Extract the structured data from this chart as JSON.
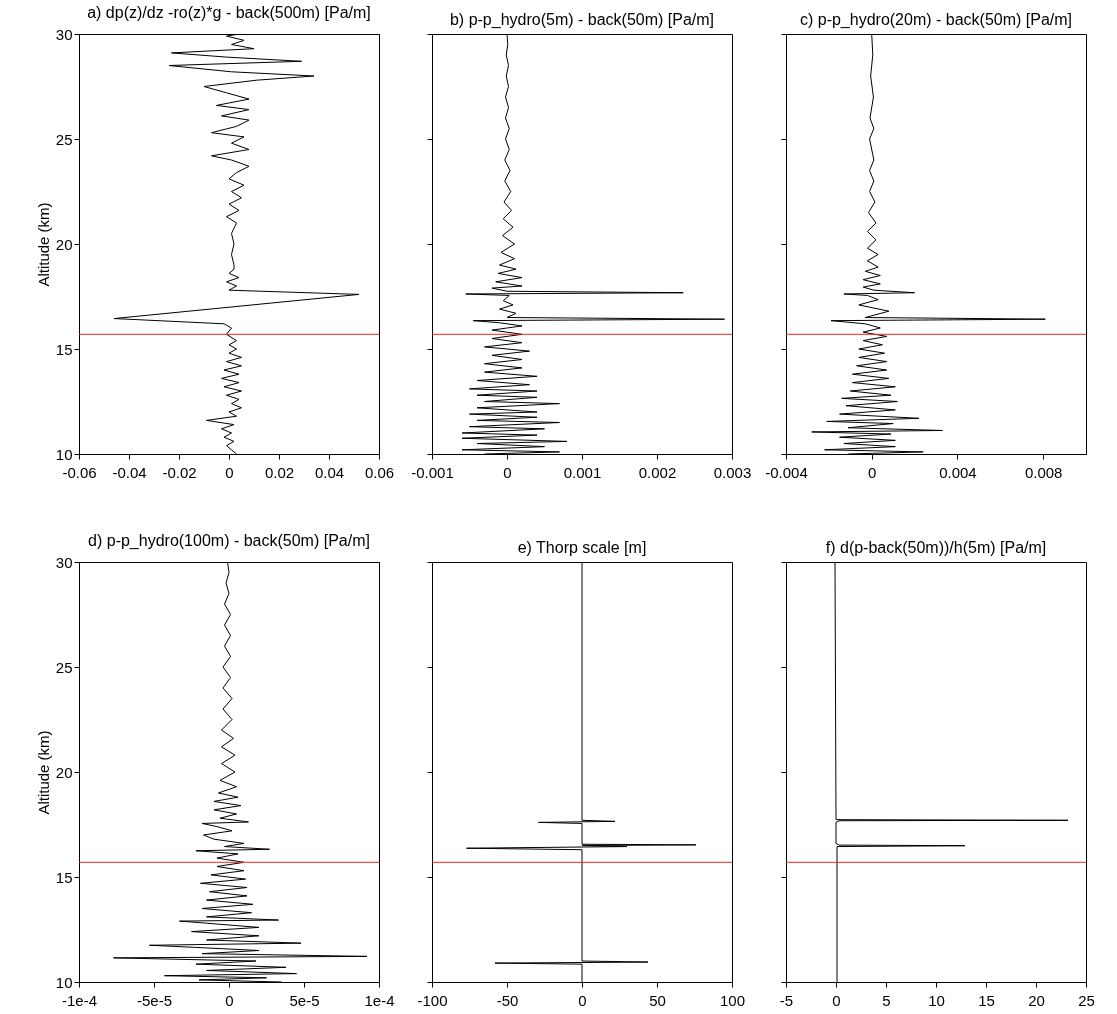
{
  "chart_data": [
    {
      "type": "line",
      "title": "a) dp(z)/dz -ro(z)*g - back(500m) [Pa/m]",
      "ylabel": "Altitude (km)",
      "xlim": [
        -0.06,
        0.06
      ],
      "xticks": [
        -0.06,
        -0.04,
        -0.02,
        0,
        0.02,
        0.04,
        0.06
      ],
      "ylim": [
        10,
        30
      ],
      "yticks": [
        10,
        15,
        20,
        25,
        30
      ],
      "series": [
        {
          "color": "#000000",
          "x": [
            0.003,
            0.001,
            -0.001,
            0.002,
            -0.002,
            0.001,
            -0.003,
            0.002,
            -0.009,
            0.003,
            0.0,
            0.005,
            0.001,
            0.004,
            -0.001,
            0.005,
            -0.002,
            0.004,
            -0.003,
            0.004,
            -0.002,
            0.005,
            -0.001,
            0.005,
            0.0,
            0.003,
            0.0,
            0.003,
            -0.001,
            0.001,
            -0.002,
            -0.046,
            0.052,
            0.0,
            0.003,
            -0.001,
            0.004,
            0.0,
            0.002,
            0.002,
            0.001,
            0.002,
            0.001,
            0.003,
            -0.001,
            0.004,
            0.0,
            0.005,
            0.001,
            0.006,
            0.0,
            0.003,
            0.008,
            0.001,
            -0.007,
            0.008,
            0.001,
            0.006,
            -0.007,
            0.003,
            0.008,
            -0.003,
            0.008,
            -0.005,
            0.008,
            -0.001,
            -0.01,
            0.011,
            0.034,
            0.001,
            -0.024,
            0.029,
            -0.001,
            -0.023,
            0.01,
            0.001,
            0.006,
            -0.001,
            0.004
          ],
          "values": [
            10.0,
            10.2,
            10.4,
            10.6,
            10.8,
            11.0,
            11.2,
            11.4,
            11.6,
            11.8,
            12.0,
            12.2,
            12.4,
            12.6,
            12.8,
            13.0,
            13.2,
            13.4,
            13.6,
            13.8,
            14.0,
            14.2,
            14.4,
            14.6,
            14.8,
            15.0,
            15.2,
            15.4,
            15.7,
            16.0,
            16.2,
            16.45,
            17.6,
            17.8,
            18.0,
            18.2,
            18.4,
            18.6,
            18.8,
            19.0,
            19.5,
            20.0,
            20.5,
            21.0,
            21.3,
            21.6,
            21.9,
            22.2,
            22.5,
            22.8,
            23.1,
            23.4,
            23.7,
            24.0,
            24.2,
            24.5,
            24.8,
            25.1,
            25.3,
            25.6,
            25.9,
            26.1,
            26.4,
            26.6,
            26.9,
            27.2,
            27.5,
            27.8,
            28.0,
            28.2,
            28.5,
            28.7,
            28.9,
            29.1,
            29.3,
            29.5,
            29.7,
            29.9,
            30.0
          ]
        }
      ],
      "ref_lines": [
        {
          "axis": "y",
          "value": 15.7,
          "color": "#e8262a"
        }
      ]
    },
    {
      "type": "line",
      "title": "b) p-p_hydro(5m) - back(50m) [Pa/m]",
      "xlim": [
        -0.001,
        0.003
      ],
      "xticks": [
        -0.001,
        0,
        0.001,
        0.002,
        0.003
      ],
      "ylim": [
        10,
        30
      ],
      "yticks": [
        10,
        15,
        20,
        25,
        30
      ],
      "tick_labels": "x",
      "series": [
        {
          "color": "#000000",
          "x": [
            -0.0003,
            0.0007,
            -0.0006,
            0.0005,
            -0.0004,
            0.0008,
            -0.0006,
            0.0004,
            -0.0006,
            0.0005,
            -0.0005,
            0.0007,
            -0.0004,
            0.0004,
            -0.0005,
            0.0004,
            -0.0004,
            0.0007,
            -0.0003,
            0.0004,
            -0.0004,
            0.0004,
            -0.0005,
            0.0003,
            -0.0004,
            0.0004,
            -0.0003,
            0.0002,
            -0.0003,
            0.0002,
            -0.0002,
            0.0003,
            -0.0003,
            0.0002,
            -0.0002,
            0.0002,
            -0.0002,
            0.0002,
            -0.0001,
            -0.00045,
            0.0029,
            0.0,
            0.00012,
            -0.0001,
            8e-05,
            -5e-05,
            3e-05,
            -0.00055,
            0.00235,
            0.0,
            -0.0002,
            0.0002,
            -0.00015,
            0.0002,
            -0.00012,
            0.00012,
            -0.0001,
            0.0001,
            -8e-05,
            0.0001,
            -6e-05,
            8e-05,
            -5e-05,
            6e-05,
            -4e-05,
            5e-05,
            -3e-05,
            4e-05,
            -3e-05,
            3e-05,
            -2e-05,
            3e-05,
            -2e-05,
            2e-05,
            -2e-05,
            2e-05,
            -1e-05,
            2e-05,
            -1e-05,
            1e-05,
            0.0
          ],
          "values": [
            10.0,
            10.1,
            10.2,
            10.35,
            10.5,
            10.6,
            10.75,
            10.9,
            11.0,
            11.2,
            11.3,
            11.5,
            11.6,
            11.75,
            11.9,
            12.0,
            12.2,
            12.4,
            12.5,
            12.7,
            12.8,
            13.0,
            13.1,
            13.3,
            13.5,
            13.7,
            13.9,
            14.1,
            14.3,
            14.5,
            14.7,
            14.9,
            15.1,
            15.3,
            15.5,
            15.7,
            15.9,
            16.1,
            16.25,
            16.35,
            16.42,
            16.5,
            16.7,
            16.9,
            17.1,
            17.3,
            17.55,
            17.62,
            17.68,
            17.75,
            17.9,
            18.0,
            18.2,
            18.4,
            18.6,
            18.8,
            19.0,
            19.3,
            19.6,
            20.0,
            20.4,
            20.8,
            21.2,
            21.6,
            22.0,
            22.5,
            23.0,
            23.5,
            24.0,
            24.5,
            25.0,
            25.5,
            26.0,
            26.5,
            27.0,
            27.5,
            28.0,
            28.5,
            29.0,
            29.5,
            30.0
          ]
        }
      ],
      "ref_lines": [
        {
          "axis": "y",
          "value": 15.7,
          "color": "#e8262a"
        }
      ]
    },
    {
      "type": "line",
      "title": "c) p-p_hydro(20m) - back(50m) [Pa/m]",
      "xlim": [
        -0.004,
        0.01
      ],
      "xticks": [
        -0.004,
        0,
        0.004,
        0.008
      ],
      "ylim": [
        10,
        30
      ],
      "yticks": [
        10,
        15,
        20,
        25,
        30
      ],
      "tick_labels": "x",
      "series": [
        {
          "color": "#000000",
          "x": [
            -0.0011,
            0.0024,
            -0.0022,
            0.0011,
            -0.0013,
            0.0011,
            -0.0015,
            0.0009,
            -0.0028,
            0.0033,
            -0.0011,
            0.001,
            -0.0021,
            0.0022,
            -0.0015,
            0.0011,
            -0.0012,
            0.0012,
            -0.0014,
            0.0009,
            -0.001,
            0.0011,
            -0.0009,
            0.0008,
            -0.0009,
            0.0007,
            -0.0007,
            0.0007,
            -0.0006,
            0.0006,
            -0.0006,
            0.0005,
            -0.0004,
            0.0007,
            -0.0004,
            0.0004,
            -0.0003,
            -0.0019,
            0.0081,
            -0.0003,
            0.0008,
            -0.0006,
            0.0003,
            -0.0002,
            -0.0013,
            0.002,
            0.0001,
            -0.0004,
            0.0004,
            -0.0004,
            0.0004,
            -0.0003,
            0.0003,
            -0.0002,
            0.0003,
            -0.0002,
            0.0002,
            -0.0002,
            0.0002,
            -0.00015,
            0.00015,
            -0.0001,
            0.0001,
            -0.0001,
            0.0001,
            -0.0001,
            0.0001,
            -8e-05,
            8e-05,
            -5e-05,
            5e-05,
            0.0
          ],
          "values": [
            10.0,
            10.1,
            10.2,
            10.35,
            10.5,
            10.65,
            10.8,
            10.95,
            11.05,
            11.12,
            11.25,
            11.45,
            11.55,
            11.7,
            11.9,
            12.1,
            12.3,
            12.5,
            12.65,
            12.8,
            13.0,
            13.2,
            13.4,
            13.6,
            13.8,
            14.0,
            14.2,
            14.4,
            14.6,
            14.8,
            15.0,
            15.2,
            15.4,
            15.6,
            15.8,
            16.0,
            16.2,
            16.35,
            16.42,
            16.5,
            16.8,
            17.1,
            17.35,
            17.55,
            17.62,
            17.68,
            17.8,
            17.95,
            18.1,
            18.3,
            18.5,
            18.7,
            18.9,
            19.2,
            19.5,
            19.8,
            20.2,
            20.6,
            21.0,
            21.5,
            22.0,
            22.5,
            23.0,
            23.5,
            24.0,
            25.0,
            25.5,
            26.0,
            27.0,
            28.0,
            29.0,
            30.0
          ]
        }
      ],
      "ref_lines": [
        {
          "axis": "y",
          "value": 15.7,
          "color": "#e8262a"
        }
      ]
    },
    {
      "type": "line",
      "title": "d) p-p_hydro(100m) - back(50m) [Pa/m]",
      "ylabel": "Altitude (km)",
      "xlim": [
        -0.0001,
        0.0001
      ],
      "xticks": [
        {
          "value": -0.0001,
          "label": "-1e-4"
        },
        {
          "value": -5e-05,
          "label": "-5e-5"
        },
        0,
        {
          "value": 5e-05,
          "label": "5e-5"
        },
        {
          "value": 0.0001,
          "label": "1e-4"
        }
      ],
      "ylim": [
        10,
        30
      ],
      "yticks": [
        10,
        15,
        20,
        25,
        30
      ],
      "series": [
        {
          "color": "#000000",
          "x": [
            3.5e-05,
            -2e-05,
            2.5e-05,
            -4.3e-05,
            4.5e-05,
            -1.5e-05,
            3.8e-05,
            -2.2e-05,
            1.8e-05,
            -7.7e-05,
            9.2e-05,
            -1.8e-05,
            2e-05,
            -2.3e-05,
            -5.3e-05,
            4.8e-05,
            -1.5e-05,
            2e-05,
            -2.5e-05,
            2e-05,
            -1.5e-05,
            -3.3e-05,
            3.3e-05,
            -1.5e-05,
            1.5e-05,
            -1.8e-05,
            1.6e-05,
            -1.5e-05,
            1.2e-05,
            -1.3e-05,
            1.2e-05,
            -1.9e-05,
            1.1e-05,
            -1.2e-05,
            1e-05,
            -8e-06,
            1e-05,
            -8e-06,
            6e-06,
            -2.2e-05,
            2.7e-05,
            -3e-06,
            1e-05,
            -1e-05,
            -1.7e-05,
            2e-06,
            -8e-06,
            -1.8e-05,
            1.3e-05,
            -6e-06,
            5e-06,
            -1e-05,
            8e-06,
            -1e-05,
            6e-06,
            -7e-06,
            5e-06,
            -6e-06,
            4e-06,
            -5e-06,
            4e-06,
            -5e-06,
            3e-06,
            -5e-06,
            2e-06,
            -4e-06,
            2e-06,
            -4e-06,
            1e-06,
            -4e-06,
            1e-06,
            -3e-06,
            1e-06,
            -3e-06,
            1e-06,
            -3e-06,
            0,
            -2e-06,
            0,
            -1e-06
          ],
          "values": [
            10.0,
            10.1,
            10.2,
            10.3,
            10.4,
            10.55,
            10.7,
            10.85,
            11.0,
            11.15,
            11.22,
            11.35,
            11.5,
            11.65,
            11.75,
            11.85,
            12.0,
            12.2,
            12.4,
            12.6,
            12.8,
            12.9,
            12.95,
            13.1,
            13.3,
            13.5,
            13.7,
            13.9,
            14.1,
            14.3,
            14.5,
            14.7,
            14.9,
            15.1,
            15.3,
            15.5,
            15.7,
            15.9,
            16.1,
            16.25,
            16.32,
            16.45,
            16.6,
            16.8,
            17.0,
            17.2,
            17.4,
            17.55,
            17.62,
            17.8,
            18.0,
            18.2,
            18.4,
            18.6,
            18.8,
            19.0,
            19.3,
            19.6,
            20.0,
            20.4,
            20.8,
            21.2,
            21.6,
            22.0,
            22.5,
            23.0,
            23.5,
            24.0,
            24.5,
            25.0,
            25.5,
            26.0,
            26.5,
            27.0,
            27.5,
            28.0,
            28.5,
            29.0,
            29.5,
            30.0
          ]
        }
      ],
      "ref_lines": [
        {
          "axis": "y",
          "value": 15.7,
          "color": "#e8262a"
        }
      ]
    },
    {
      "type": "line",
      "title": "e) Thorp scale [m]",
      "xlim": [
        -100,
        100
      ],
      "xticks": [
        -100,
        -50,
        0,
        50,
        100
      ],
      "ylim": [
        10,
        30
      ],
      "yticks": [
        10,
        15,
        20,
        25,
        30
      ],
      "tick_labels": "x",
      "series": [
        {
          "color": "#000000",
          "x": [
            0,
            0,
            -58,
            44,
            0,
            0,
            -77,
            30,
            0,
            76,
            0,
            0,
            -29,
            22,
            0,
            0
          ],
          "values": [
            10.0,
            10.85,
            10.9,
            10.95,
            11.0,
            16.3,
            16.37,
            16.45,
            16.5,
            16.53,
            16.56,
            17.55,
            17.6,
            17.65,
            17.7,
            30.0
          ]
        }
      ],
      "ref_lines": [
        {
          "axis": "y",
          "value": 15.7,
          "color": "#e8262a"
        }
      ]
    },
    {
      "type": "line",
      "title": "f) d(p-back(50m))/h(5m) [Pa/m]",
      "xlim": [
        -5,
        25
      ],
      "xticks": [
        -5,
        0,
        5,
        10,
        15,
        20,
        25
      ],
      "ylim": [
        10,
        30
      ],
      "yticks": [
        10,
        15,
        20,
        25,
        30
      ],
      "tick_labels": "x",
      "series": [
        {
          "color": "#000000",
          "x": [
            0.1,
            0.1,
            12.9,
            0.3,
            0.0,
            0.0,
            0.3,
            23.2,
            0.0,
            -0.1
          ],
          "values": [
            10.0,
            16.45,
            16.49,
            16.52,
            16.6,
            17.6,
            17.68,
            17.7,
            17.73,
            30.0
          ]
        }
      ],
      "ref_lines": [
        {
          "axis": "y",
          "value": 15.7,
          "color": "#e8262a"
        }
      ]
    }
  ]
}
